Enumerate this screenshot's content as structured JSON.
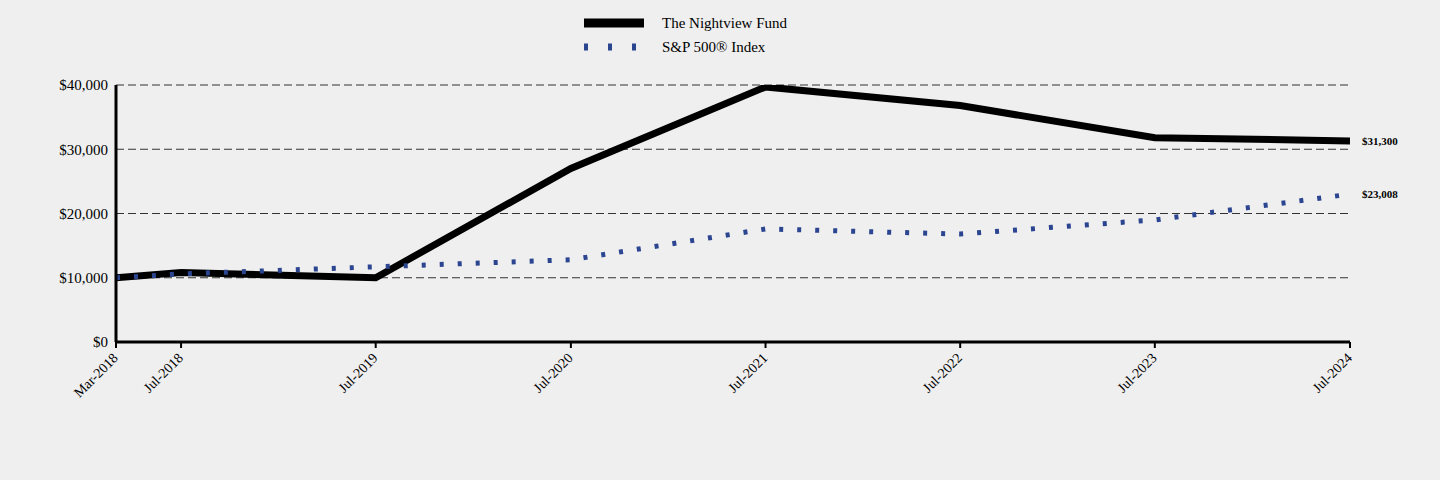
{
  "chart_data": {
    "type": "line",
    "x": [
      "Mar-2018",
      "Jul-2018",
      "Jul-2019",
      "Jul-2020",
      "Jul-2021",
      "Jul-2022",
      "Jul-2023",
      "Jul-2024"
    ],
    "xlim": [
      "Mar-2018",
      "Jul-2024"
    ],
    "xticks": [
      "Mar-2018",
      "Jul-2018",
      "Jul-2019",
      "Jul-2020",
      "Jul-2021",
      "Jul-2022",
      "Jul-2023",
      "Jul-2024"
    ],
    "ylim": [
      0,
      40000
    ],
    "yticks": [
      {
        "value": 0,
        "label": "$0"
      },
      {
        "value": 10000,
        "label": "$10,000"
      },
      {
        "value": 20000,
        "label": "$20,000"
      },
      {
        "value": 30000,
        "label": "$30,000"
      },
      {
        "value": 40000,
        "label": "$40,000"
      }
    ],
    "grid": true,
    "legend": "top",
    "series": [
      {
        "name": "The Nightview Fund",
        "color": "#000000",
        "line_style": "solid",
        "values": [
          10000,
          10800,
          10000,
          27000,
          39700,
          36800,
          31800,
          31300
        ],
        "value_labels": [
          null,
          null,
          null,
          null,
          null,
          null,
          null,
          "$31,300"
        ]
      },
      {
        "name": "S&P 500® Index",
        "color": "#2b4590",
        "line_style": "dotted",
        "values": [
          10000,
          10600,
          11700,
          12800,
          17600,
          16800,
          19000,
          23008
        ],
        "value_labels": [
          null,
          null,
          null,
          null,
          null,
          null,
          null,
          "$23,008"
        ]
      }
    ]
  }
}
